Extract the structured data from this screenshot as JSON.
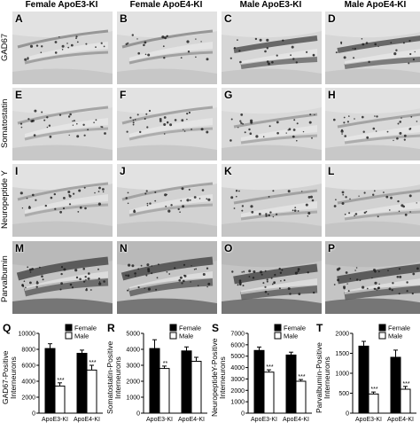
{
  "columns": [
    "Female ApoE3-KI",
    "Female ApoE4-KI",
    "Male ApoE3-KI",
    "Male ApoE4-KI"
  ],
  "rows": [
    "GAD67",
    "Somatostatin",
    "Neuropeptide Y",
    "Parvalbumin"
  ],
  "panel_letters": [
    [
      "A",
      "B",
      "C",
      "D"
    ],
    [
      "E",
      "F",
      "G",
      "H"
    ],
    [
      "I",
      "J",
      "K",
      "L"
    ],
    [
      "M",
      "N",
      "O",
      "P"
    ]
  ],
  "chart_data": [
    {
      "letter": "Q",
      "type": "bar",
      "ylabel": [
        "GAD67-Positive",
        "Interneurons"
      ],
      "categories": [
        "ApoE3-KI",
        "ApoE4-KI"
      ],
      "ylim": [
        0,
        10000
      ],
      "yticks": [
        "0",
        "2000",
        "4000",
        "6000",
        "8000",
        "10000"
      ],
      "yticks_values": [
        0,
        2000,
        4000,
        6000,
        8000,
        10000
      ],
      "series": [
        {
          "name": "Female",
          "color": "#000000",
          "values": [
            8100,
            7500
          ],
          "errors": [
            600,
            400
          ]
        },
        {
          "name": "Male",
          "color": "#ffffff",
          "values": [
            3400,
            5400
          ],
          "errors": [
            400,
            600
          ]
        }
      ],
      "sig": [
        "***",
        "***"
      ]
    },
    {
      "letter": "R",
      "type": "bar",
      "ylabel": [
        "Somatostatin-Positive",
        "Interneurons"
      ],
      "categories": [
        "ApoE3-KI",
        "ApoE4-KI"
      ],
      "ylim": [
        0,
        5000
      ],
      "yticks": [
        "0",
        "1000",
        "2000",
        "3000",
        "4000",
        "5000"
      ],
      "yticks_values": [
        0,
        1000,
        2000,
        3000,
        4000,
        5000
      ],
      "series": [
        {
          "name": "Female",
          "color": "#000000",
          "values": [
            4050,
            3900
          ],
          "errors": [
            550,
            250
          ]
        },
        {
          "name": "Male",
          "color": "#ffffff",
          "values": [
            2800,
            3250
          ],
          "errors": [
            150,
            250
          ]
        }
      ],
      "sig": [
        "**",
        ""
      ]
    },
    {
      "letter": "S",
      "type": "bar",
      "ylabel": [
        "NeuropeptideY-Positive",
        "Interneurons"
      ],
      "categories": [
        "ApoE3-KI",
        "ApoE4-KI"
      ],
      "ylim": [
        0,
        7000
      ],
      "yticks": [
        "0",
        "1000",
        "2000",
        "3000",
        "4000",
        "5000",
        "6000",
        "7000"
      ],
      "yticks_values": [
        0,
        1000,
        2000,
        3000,
        4000,
        5000,
        6000,
        7000
      ],
      "series": [
        {
          "name": "Female",
          "color": "#000000",
          "values": [
            5500,
            5100
          ],
          "errors": [
            300,
            250
          ]
        },
        {
          "name": "Male",
          "color": "#ffffff",
          "values": [
            3600,
            2800
          ],
          "errors": [
            200,
            150
          ]
        }
      ],
      "sig": [
        "***",
        "***"
      ]
    },
    {
      "letter": "T",
      "type": "bar",
      "ylabel": [
        "Parvalbumin-Positive",
        "Interneurons"
      ],
      "categories": [
        "ApoE3-KI",
        "ApoE4-KI"
      ],
      "ylim": [
        0,
        2000
      ],
      "yticks": [
        "0",
        "500",
        "1000",
        "1500",
        "2000"
      ],
      "yticks_values": [
        0,
        500,
        1000,
        1500,
        2000
      ],
      "series": [
        {
          "name": "Female",
          "color": "#000000",
          "values": [
            1680,
            1400
          ],
          "errors": [
            120,
            180
          ]
        },
        {
          "name": "Male",
          "color": "#ffffff",
          "values": [
            480,
            600
          ],
          "errors": [
            50,
            70
          ]
        }
      ],
      "sig": [
        "***",
        "***"
      ]
    }
  ]
}
